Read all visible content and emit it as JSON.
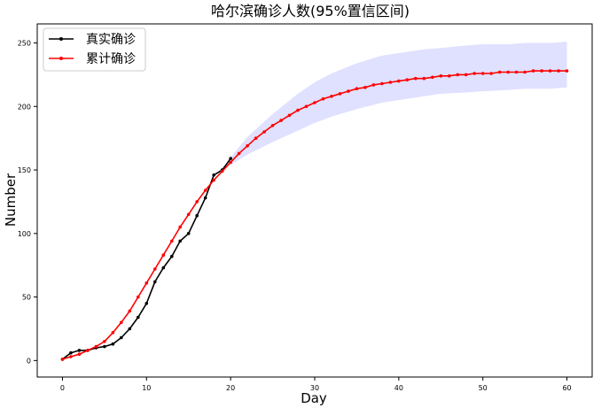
{
  "chart_data": {
    "type": "line",
    "title": "哈尔滨确诊人数(95%置信区间)",
    "xlabel": "Day",
    "ylabel": "Number",
    "xlim": [
      -3,
      63
    ],
    "ylim": [
      -13,
      265
    ],
    "xticks": [
      0,
      10,
      20,
      30,
      40,
      50,
      60
    ],
    "yticks": [
      0,
      50,
      100,
      150,
      200,
      250
    ],
    "grid": false,
    "legend_position": "top-left",
    "series": [
      {
        "name": "真实确诊",
        "color": "#000000",
        "marker": "circle",
        "x": [
          0,
          1,
          2,
          3,
          4,
          5,
          6,
          7,
          8,
          9,
          10,
          11,
          12,
          13,
          14,
          15,
          16,
          17,
          18,
          19,
          20
        ],
        "y": [
          1,
          6,
          8,
          8,
          10,
          11,
          13,
          18,
          25,
          34,
          45,
          62,
          73,
          82,
          94,
          100,
          114,
          128,
          146,
          150,
          159
        ]
      },
      {
        "name": "累计确诊",
        "color": "#ff0000",
        "marker": "circle",
        "x": [
          0,
          1,
          2,
          3,
          4,
          5,
          6,
          7,
          8,
          9,
          10,
          11,
          12,
          13,
          14,
          15,
          16,
          17,
          18,
          19,
          20,
          21,
          22,
          23,
          24,
          25,
          26,
          27,
          28,
          29,
          30,
          31,
          32,
          33,
          34,
          35,
          36,
          37,
          38,
          39,
          40,
          41,
          42,
          43,
          44,
          45,
          46,
          47,
          48,
          49,
          50,
          51,
          52,
          53,
          54,
          55,
          56,
          57,
          58,
          59,
          60
        ],
        "y": [
          1,
          3,
          5,
          8,
          11,
          15,
          22,
          30,
          39,
          50,
          61,
          72,
          83,
          94,
          105,
          115,
          125,
          134,
          142,
          149,
          156,
          163,
          169,
          175,
          180,
          185,
          189,
          193,
          197,
          200,
          203,
          206,
          208,
          210,
          212,
          214,
          215,
          217,
          218,
          219,
          220,
          221,
          222,
          222,
          223,
          224,
          224,
          225,
          225,
          226,
          226,
          226,
          227,
          227,
          227,
          227,
          228,
          228,
          228,
          228,
          228
        ]
      }
    ],
    "confidence_band": {
      "label": "95%置信区间",
      "color": "#e0e0ff",
      "x": [
        20,
        22,
        25,
        28,
        30,
        32,
        35,
        38,
        40,
        43,
        45,
        48,
        50,
        53,
        55,
        58,
        60
      ],
      "lower": [
        154,
        162,
        172,
        181,
        187,
        192,
        198,
        203,
        205,
        208,
        210,
        211,
        212,
        213,
        214,
        214,
        215
      ],
      "upper": [
        160,
        176,
        194,
        210,
        219,
        226,
        234,
        240,
        242,
        245,
        246,
        248,
        249,
        249,
        250,
        250,
        251
      ]
    }
  }
}
